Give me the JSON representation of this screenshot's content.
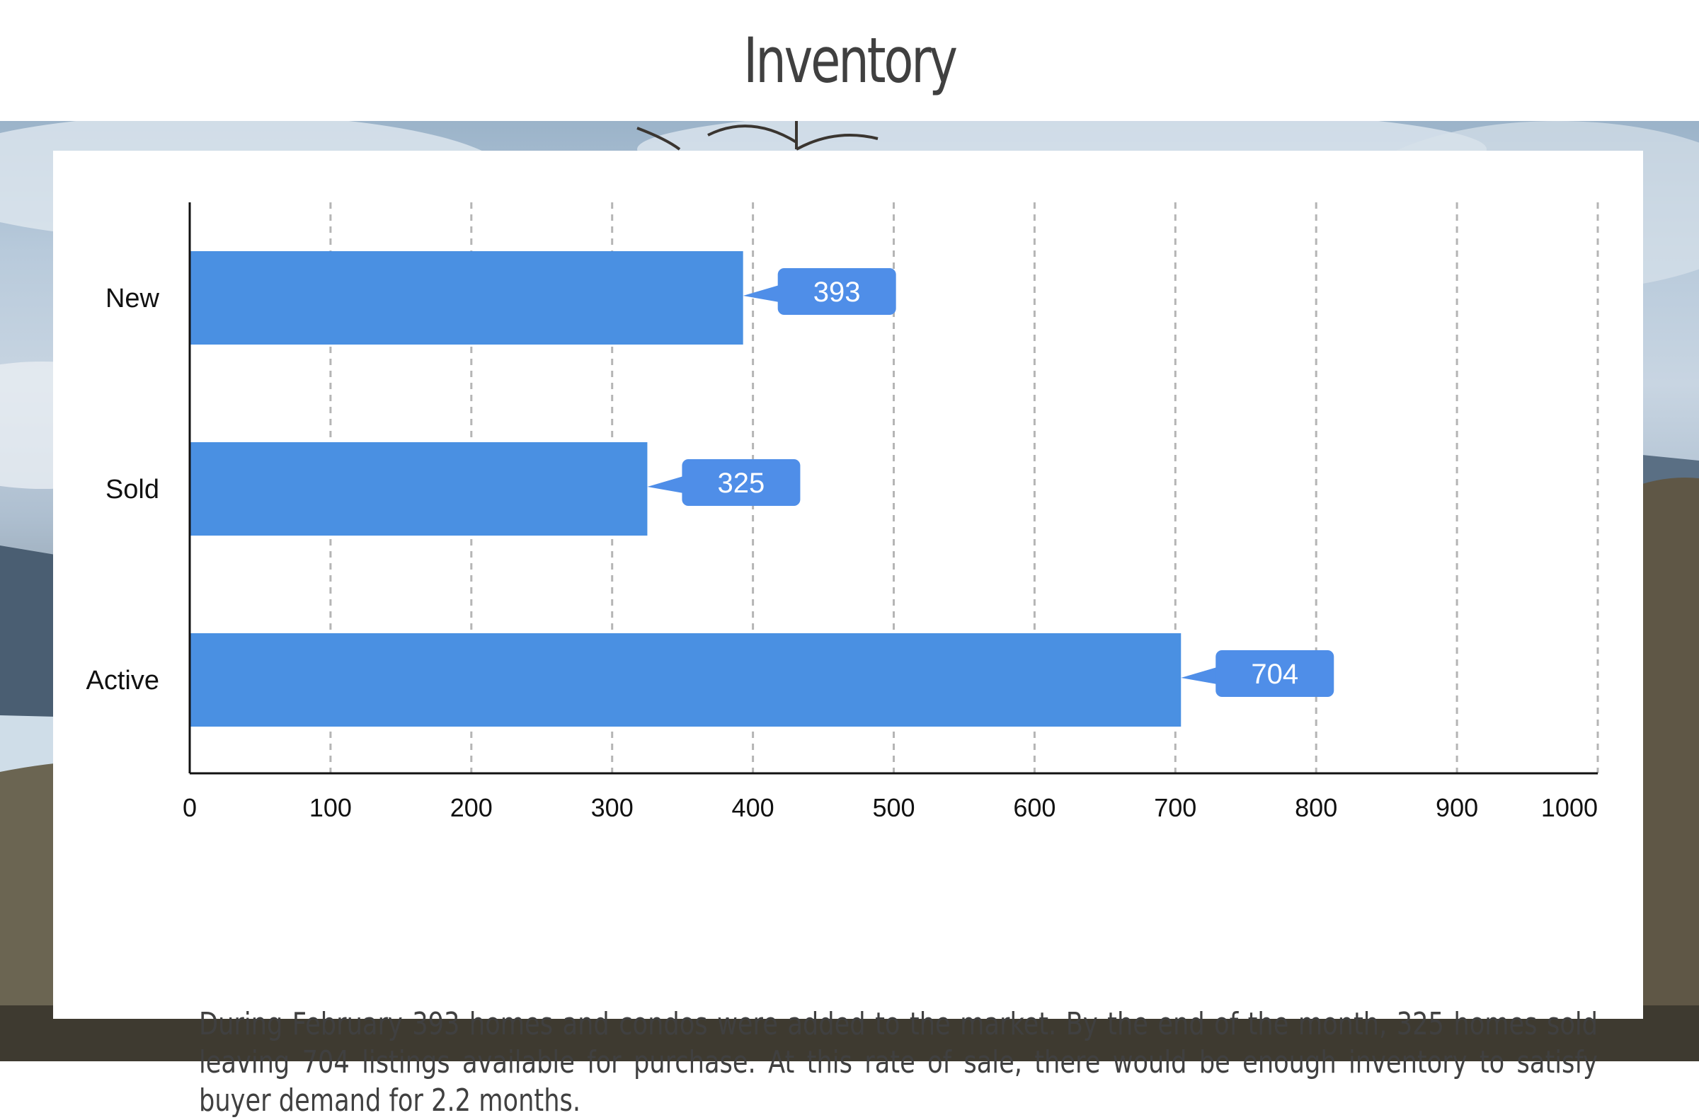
{
  "page": {
    "title": "Inventory",
    "summary": "During February 393 homes and condos were added to the market. By the end of the month, 325 homes sold leaving 704 listings available for purchase. At this rate of sale, there would be enough inventory to satisfy buyer demand for 2.2 months."
  },
  "chart_data": {
    "type": "bar",
    "orientation": "horizontal",
    "categories": [
      "New",
      "Sold",
      "Active"
    ],
    "values": [
      393,
      325,
      704
    ],
    "data_labels": [
      "393",
      "325",
      "704"
    ],
    "xlim": [
      0,
      1000
    ],
    "x_ticks": [
      "0",
      "100",
      "200",
      "300",
      "400",
      "500",
      "600",
      "700",
      "800",
      "900",
      "1000"
    ],
    "grid": "vertical-dashed",
    "bar_color": "#4a90e2",
    "label_color": "#4f8ee8"
  }
}
